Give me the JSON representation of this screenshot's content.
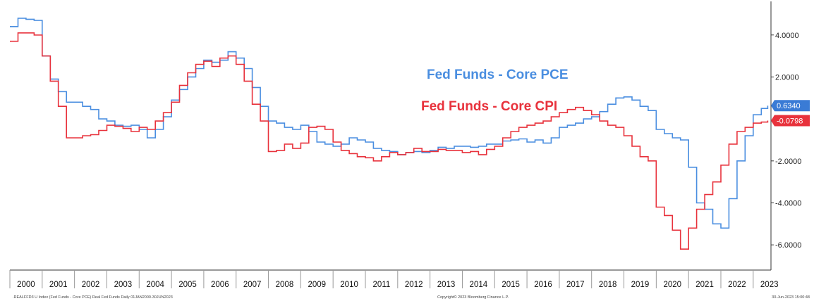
{
  "chart_data": {
    "type": "line",
    "title": "",
    "xlabel": "",
    "ylabel": "",
    "x_ticks": [
      "2000",
      "2001",
      "2002",
      "2003",
      "2004",
      "2005",
      "2006",
      "2007",
      "2008",
      "2009",
      "2010",
      "2011",
      "2012",
      "2013",
      "2014",
      "2015",
      "2016",
      "2017",
      "2018",
      "2019",
      "2020",
      "2021",
      "2022",
      "2023"
    ],
    "y_ticks": [
      "4.0000",
      "2.0000",
      "-2.0000",
      "-4.0000",
      "-6.0000"
    ],
    "ylim": [
      -7.2,
      5.6
    ],
    "xlim": [
      2000.0,
      2023.55
    ],
    "grid": false,
    "legend_position": "upper-center",
    "x": [
      2000.0,
      2000.25,
      2000.5,
      2000.75,
      2001.0,
      2001.25,
      2001.5,
      2001.75,
      2002.0,
      2002.25,
      2002.5,
      2002.75,
      2003.0,
      2003.25,
      2003.5,
      2003.75,
      2004.0,
      2004.25,
      2004.5,
      2004.75,
      2005.0,
      2005.25,
      2005.5,
      2005.75,
      2006.0,
      2006.25,
      2006.5,
      2006.75,
      2007.0,
      2007.25,
      2007.5,
      2007.75,
      2008.0,
      2008.25,
      2008.5,
      2008.75,
      2009.0,
      2009.25,
      2009.5,
      2009.75,
      2010.0,
      2010.25,
      2010.5,
      2010.75,
      2011.0,
      2011.25,
      2011.5,
      2011.75,
      2012.0,
      2012.25,
      2012.5,
      2012.75,
      2013.0,
      2013.25,
      2013.5,
      2013.75,
      2014.0,
      2014.25,
      2014.5,
      2014.75,
      2015.0,
      2015.25,
      2015.5,
      2015.75,
      2016.0,
      2016.25,
      2016.5,
      2016.75,
      2017.0,
      2017.25,
      2017.5,
      2017.75,
      2018.0,
      2018.25,
      2018.5,
      2018.75,
      2019.0,
      2019.25,
      2019.5,
      2019.75,
      2020.0,
      2020.25,
      2020.5,
      2020.75,
      2021.0,
      2021.25,
      2021.5,
      2021.75,
      2022.0,
      2022.25,
      2022.5,
      2022.75,
      2023.0,
      2023.25,
      2023.45
    ],
    "series": [
      {
        "name": "Fed Funds - Core PCE",
        "color": "#4a8ee0",
        "values": [
          4.4,
          4.8,
          4.75,
          4.7,
          3.0,
          1.9,
          1.3,
          0.8,
          0.8,
          0.6,
          0.45,
          0.0,
          -0.1,
          -0.3,
          -0.35,
          -0.3,
          -0.5,
          -0.9,
          -0.5,
          0.1,
          0.9,
          1.4,
          2.0,
          2.4,
          2.8,
          2.7,
          2.8,
          3.2,
          2.9,
          2.4,
          1.5,
          0.6,
          -0.1,
          -0.2,
          -0.4,
          -0.5,
          -0.3,
          -0.6,
          -1.1,
          -1.2,
          -1.3,
          -1.2,
          -0.9,
          -1.0,
          -1.1,
          -1.4,
          -1.5,
          -1.55,
          -1.7,
          -1.6,
          -1.55,
          -1.6,
          -1.5,
          -1.35,
          -1.4,
          -1.3,
          -1.3,
          -1.35,
          -1.3,
          -1.2,
          -1.2,
          -1.05,
          -1.0,
          -0.95,
          -1.1,
          -1.0,
          -1.15,
          -0.9,
          -0.4,
          -0.3,
          -0.2,
          0.0,
          0.1,
          0.35,
          0.7,
          1.0,
          1.05,
          0.9,
          0.6,
          0.4,
          -0.5,
          -0.7,
          -0.9,
          -1.0,
          -2.3,
          -4.0,
          -4.3,
          -5.0,
          -5.2,
          -3.8,
          -2.0,
          -0.8,
          0.2,
          0.5,
          0.634
        ]
      },
      {
        "name": "Fed Funds - Core CPI",
        "color": "#e8323c",
        "values": [
          3.7,
          4.1,
          4.1,
          4.0,
          3.0,
          1.8,
          0.6,
          -0.9,
          -0.9,
          -0.8,
          -0.75,
          -0.55,
          -0.3,
          -0.35,
          -0.45,
          -0.6,
          -0.4,
          -0.5,
          -0.1,
          0.3,
          0.8,
          1.6,
          2.2,
          2.6,
          2.75,
          2.5,
          2.9,
          3.0,
          2.6,
          1.8,
          0.7,
          -0.1,
          -1.55,
          -1.5,
          -1.2,
          -1.4,
          -1.15,
          -0.4,
          -0.35,
          -0.5,
          -1.1,
          -1.5,
          -1.65,
          -1.8,
          -1.85,
          -2.0,
          -1.8,
          -1.6,
          -1.7,
          -1.6,
          -1.4,
          -1.55,
          -1.55,
          -1.45,
          -1.5,
          -1.5,
          -1.6,
          -1.55,
          -1.7,
          -1.45,
          -1.3,
          -0.9,
          -0.6,
          -0.4,
          -0.3,
          -0.2,
          -0.1,
          0.1,
          0.3,
          0.45,
          0.55,
          0.4,
          0.2,
          -0.1,
          -0.3,
          -0.4,
          -0.8,
          -1.3,
          -1.8,
          -2.0,
          -4.2,
          -4.6,
          -5.3,
          -6.2,
          -5.2,
          -4.3,
          -3.6,
          -3.0,
          -2.2,
          -1.2,
          -0.6,
          -0.4,
          -0.2,
          -0.15,
          -0.08
        ]
      }
    ],
    "last_value_labels": [
      {
        "series": "Fed Funds - Core PCE",
        "text": "0.6340",
        "value": 0.634,
        "color": "#3a7bd5"
      },
      {
        "series": "Fed Funds - Core CPI",
        "text": "-0.0798",
        "value": -0.0798,
        "color": "#e8323c"
      }
    ],
    "legend": [
      {
        "text": "Fed Funds - Core PCE",
        "color": "#4a8ee0"
      },
      {
        "text": "Fed Funds - Core CPI",
        "color": "#e8323c"
      }
    ]
  },
  "footer": {
    "left": ".REALFFD3 U Index (Fed Funds - Core PCE) Real Fed Funds Daily 01JAN2000-30JUN2023",
    "center": "Copyright© 2023 Bloomberg Finance L.P.",
    "right": "30-Jun-2023 15:00:48"
  }
}
